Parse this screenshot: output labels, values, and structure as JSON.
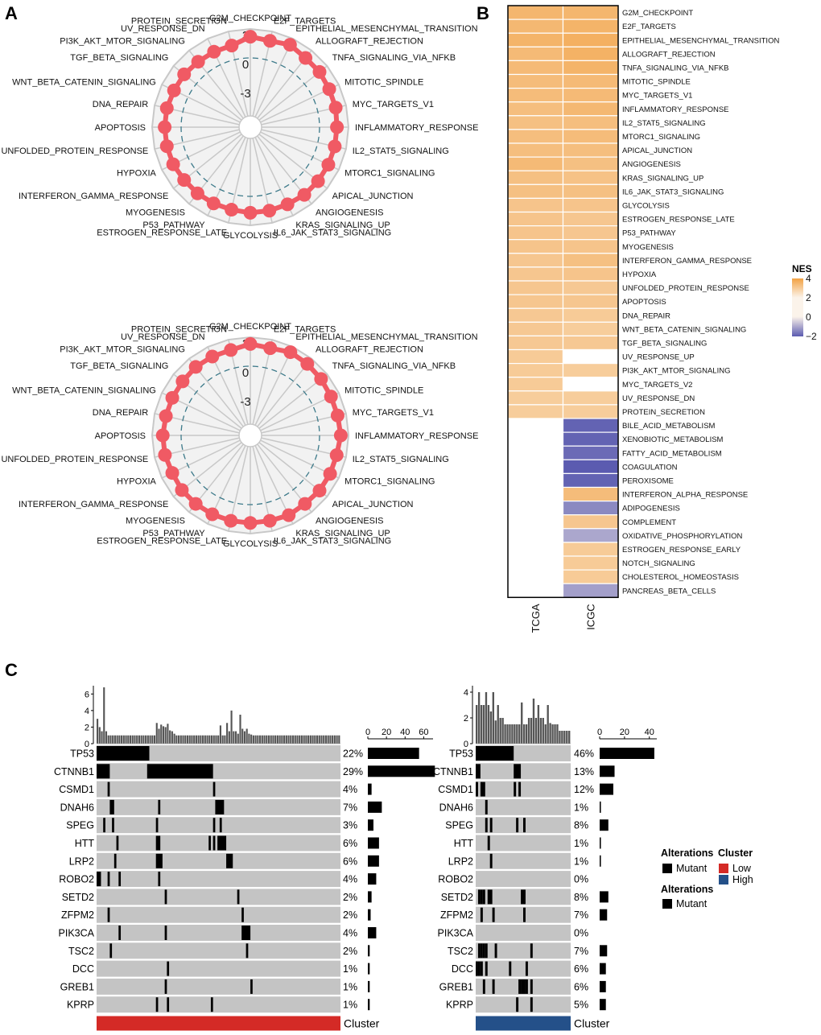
{
  "panel_labels": {
    "a": "A",
    "b": "B",
    "c": "C"
  },
  "colors": {
    "radar_point": "#f05a64",
    "radar_bg": "#f2f2f2",
    "radar_grid": "#c8c8c8",
    "zero_ring": "#3d7a8a",
    "nes_high": "#f2a244",
    "nes_mid": "#fbf3ea",
    "nes_low": "#5b5bb0",
    "cell_bg": "#c4c4c4",
    "mutant": "#000000",
    "cluster_low": "#d42a26",
    "cluster_high": "#245089"
  },
  "chart_data": [
    {
      "type": "radar",
      "panel": "A-top",
      "axes": [
        "G2M_CHECKPOINT",
        "E2F_TARGETS",
        "EPITHELIAL_MESENCHYMAL_TRANSITION",
        "ALLOGRAFT_REJECTION",
        "TNFA_SIGNALING_VIA_NFKB",
        "MITOTIC_SPINDLE",
        "MYC_TARGETS_V1",
        "INFLAMMATORY_RESPONSE",
        "IL2_STAT5_SIGNALING",
        "MTORC1_SIGNALING",
        "APICAL_JUNCTION",
        "ANGIOGENESIS",
        "KRAS_SIGNALING_UP",
        "IL6_JAK_STAT3_SIGNALING",
        "GLYCOLYSIS",
        "ESTROGEN_RESPONSE_LATE",
        "P53_PATHWAY",
        "MYOGENESIS",
        "INTERFERON_GAMMA_RESPONSE",
        "HYPOXIA",
        "UNFOLDED_PROTEIN_RESPONSE",
        "APOPTOSIS",
        "DNA_REPAIR",
        "WNT_BETA_CATENIN_SIGNALING",
        "TGF_BETA_SIGNALING",
        "PI3K_AKT_MTOR_SIGNALING",
        "UV_RESPONSE_DN",
        "PROTEIN_SECRETION"
      ],
      "values": [
        2.2,
        2.0,
        2.3,
        2.0,
        2.0,
        1.9,
        1.9,
        1.8,
        1.8,
        1.8,
        1.8,
        1.8,
        1.7,
        1.7,
        1.7,
        1.6,
        1.6,
        1.6,
        1.6,
        1.7,
        1.7,
        1.7,
        1.7,
        1.6,
        1.6,
        1.5,
        1.5,
        1.5
      ],
      "ticks": [
        "3",
        "0",
        "-3"
      ],
      "range": [
        -6,
        3
      ]
    },
    {
      "type": "radar",
      "panel": "A-bottom",
      "axes": [
        "G2M_CHECKPOINT",
        "E2F_TARGETS",
        "EPITHELIAL_MESENCHYMAL_TRANSITION",
        "ALLOGRAFT_REJECTION",
        "TNFA_SIGNALING_VIA_NFKB",
        "MITOTIC_SPINDLE",
        "MYC_TARGETS_V1",
        "INFLAMMATORY_RESPONSE",
        "IL2_STAT5_SIGNALING",
        "MTORC1_SIGNALING",
        "APICAL_JUNCTION",
        "ANGIOGENESIS",
        "KRAS_SIGNALING_UP",
        "IL6_JAK_STAT3_SIGNALING",
        "GLYCOLYSIS",
        "ESTROGEN_RESPONSE_LATE",
        "P53_PATHWAY",
        "MYOGENESIS",
        "INTERFERON_GAMMA_RESPONSE",
        "HYPOXIA",
        "UNFOLDED_PROTEIN_RESPONSE",
        "APOPTOSIS",
        "DNA_REPAIR",
        "WNT_BETA_CATENIN_SIGNALING",
        "TGF_BETA_SIGNALING",
        "PI3K_AKT_MTOR_SIGNALING",
        "UV_RESPONSE_DN",
        "PROTEIN_SECRETION"
      ],
      "values": [
        2.3,
        2.1,
        2.4,
        2.3,
        2.2,
        2.1,
        2.1,
        2.2,
        2.0,
        2.0,
        2.0,
        1.9,
        2.0,
        1.9,
        1.9,
        1.9,
        1.9,
        1.9,
        1.9,
        1.8,
        1.9,
        1.9,
        1.8,
        1.8,
        1.8,
        1.9,
        1.9,
        1.9
      ],
      "ticks": [
        "3",
        "0",
        "-3"
      ],
      "range": [
        -6,
        3
      ]
    },
    {
      "type": "heatmap",
      "panel": "B",
      "columns": [
        "TCGA",
        "ICGC"
      ],
      "rows": [
        "G2M_CHECKPOINT",
        "E2F_TARGETS",
        "EPITHELIAL_MESENCHYMAL_TRANSITION",
        "ALLOGRAFT_REJECTION",
        "TNFA_SIGNALING_VIA_NFKB",
        "MITOTIC_SPINDLE",
        "MYC_TARGETS_V1",
        "INFLAMMATORY_RESPONSE",
        "IL2_STAT5_SIGNALING",
        "MTORC1_SIGNALING",
        "APICAL_JUNCTION",
        "ANGIOGENESIS",
        "KRAS_SIGNALING_UP",
        "IL6_JAK_STAT3_SIGNALING",
        "GLYCOLYSIS",
        "ESTROGEN_RESPONSE_LATE",
        "P53_PATHWAY",
        "MYOGENESIS",
        "INTERFERON_GAMMA_RESPONSE",
        "HYPOXIA",
        "UNFOLDED_PROTEIN_RESPONSE",
        "APOPTOSIS",
        "DNA_REPAIR",
        "WNT_BETA_CATENIN_SIGNALING",
        "TGF_BETA_SIGNALING",
        "UV_RESPONSE_UP",
        "PI3K_AKT_MTOR_SIGNALING",
        "MYC_TARGETS_V2",
        "UV_RESPONSE_DN",
        "PROTEIN_SECRETION",
        "BILE_ACID_METABOLISM",
        "XENOBIOTIC_METABOLISM",
        "FATTY_ACID_METABOLISM",
        "COAGULATION",
        "PEROXISOME",
        "INTERFERON_ALPHA_RESPONSE",
        "ADIPOGENESIS",
        "COMPLEMENT",
        "OXIDATIVE_PHOSPHORYLATION",
        "ESTROGEN_RESPONSE_EARLY",
        "NOTCH_SIGNALING",
        "CHOLESTEROL_HOMEOSTASIS",
        "PANCREAS_BETA_CELLS"
      ],
      "values": [
        [
          3.0,
          3.0
        ],
        [
          2.9,
          3.1
        ],
        [
          3.1,
          3.3
        ],
        [
          2.8,
          3.2
        ],
        [
          2.8,
          3.1
        ],
        [
          2.7,
          2.8
        ],
        [
          2.7,
          2.8
        ],
        [
          2.6,
          2.9
        ],
        [
          2.5,
          2.6
        ],
        [
          2.6,
          2.7
        ],
        [
          2.6,
          2.6
        ],
        [
          2.8,
          2.5
        ],
        [
          2.5,
          2.4
        ],
        [
          2.5,
          2.5
        ],
        [
          2.3,
          2.3
        ],
        [
          2.3,
          2.2
        ],
        [
          2.3,
          2.2
        ],
        [
          2.3,
          2.3
        ],
        [
          2.2,
          2.5
        ],
        [
          2.2,
          2.3
        ],
        [
          2.2,
          2.1
        ],
        [
          2.2,
          2.2
        ],
        [
          2.1,
          2.0
        ],
        [
          2.1,
          1.9
        ],
        [
          2.1,
          2.1
        ],
        [
          2.0,
          null
        ],
        [
          2.0,
          1.9
        ],
        [
          2.0,
          null
        ],
        [
          1.9,
          1.9
        ],
        [
          1.9,
          1.9
        ],
        [
          null,
          -1.9
        ],
        [
          null,
          -1.9
        ],
        [
          null,
          -1.8
        ],
        [
          null,
          -2.0
        ],
        [
          null,
          -1.9
        ],
        [
          null,
          2.7
        ],
        [
          null,
          -1.4
        ],
        [
          null,
          2.2
        ],
        [
          null,
          -1.0
        ],
        [
          null,
          2.0
        ],
        [
          null,
          2.0
        ],
        [
          null,
          2.0
        ],
        [
          null,
          -1.1
        ]
      ],
      "legend": {
        "title": "NES",
        "ticks": [
          "4",
          "2",
          "0",
          "−2"
        ],
        "range": [
          -2,
          4
        ]
      }
    },
    {
      "type": "oncoprint",
      "panel": "C",
      "genes": [
        "TP53",
        "CTNNB1",
        "CSMD1",
        "DNAH6",
        "SPEG",
        "HTT",
        "LRP2",
        "ROBO2",
        "SETD2",
        "ZFPM2",
        "PIK3CA",
        "TSC2",
        "DCC",
        "GREB1",
        "KPRP"
      ],
      "cluster_label": "Cluster",
      "groups": [
        {
          "name": "Low",
          "samples": 111,
          "pct_labels": [
            "22%",
            "29%",
            "4%",
            "7%",
            "3%",
            "6%",
            "6%",
            "4%",
            "2%",
            "2%",
            "4%",
            "2%",
            "1%",
            "1%",
            "1%"
          ],
          "counts": [
            55,
            72,
            4,
            15,
            6,
            12,
            12,
            9,
            4,
            3,
            9,
            2,
            2,
            2,
            2
          ],
          "count_ticks": [
            "0",
            "20",
            "40",
            "60"
          ],
          "count_max": 70,
          "tmb_ticks": [
            "6",
            "4",
            "2",
            "0"
          ],
          "tmb_max": 7,
          "mut": [
            [
              [
                0,
                23
              ]
            ],
            [
              [
                0,
                5
              ],
              [
                23,
                52
              ]
            ],
            [
              [
                5
              ],
              [
                53
              ]
            ],
            [
              [
                6,
                7
              ],
              [
                28
              ],
              [
                54,
                57
              ]
            ],
            [
              [
                3
              ],
              [
                7
              ],
              [
                27
              ],
              [
                53
              ],
              [
                56
              ]
            ],
            [
              [
                9
              ],
              [
                27,
                28
              ],
              [
                51
              ],
              [
                53
              ],
              [
                55,
                58
              ]
            ],
            [
              [
                8
              ],
              [
                27,
                29
              ],
              [
                59,
                61
              ]
            ],
            [
              [
                0,
                1
              ],
              [
                5
              ],
              [
                10
              ],
              [
                28
              ]
            ],
            [
              [
                31
              ],
              [
                64
              ]
            ],
            [
              [
                5
              ],
              [
                66
              ]
            ],
            [
              [
                10
              ],
              [
                31
              ],
              [
                66,
                69
              ]
            ],
            [
              [
                6
              ],
              [
                68
              ]
            ],
            [
              [
                32
              ]
            ],
            [
              [
                31
              ],
              [
                70
              ]
            ],
            [
              [
                27
              ],
              [
                32
              ],
              [
                52
              ]
            ]
          ],
          "tmb": [
            3,
            2,
            1.5,
            6.8,
            1.5,
            1,
            1,
            1,
            1,
            1,
            1,
            1,
            1,
            1,
            1,
            1,
            1,
            1,
            1,
            1,
            1,
            1,
            1,
            1,
            1,
            1,
            1,
            2.5,
            1.8,
            2.3,
            2.1,
            2,
            2.4,
            1.6,
            1.5,
            1.2,
            1,
            1,
            1,
            1,
            1,
            1,
            1,
            1,
            1,
            1,
            1,
            1,
            1,
            1,
            1,
            1,
            1,
            1,
            1,
            1,
            2.2,
            1,
            1,
            2.5,
            1.5,
            4,
            1.5,
            1.5,
            1.2,
            3.5,
            1.8,
            1.5,
            1.8,
            1.2,
            1.1,
            1,
            1,
            1,
            1,
            1,
            1,
            1,
            1,
            1,
            1,
            1,
            1,
            1,
            1,
            1,
            1,
            1,
            1,
            1,
            1,
            1,
            1,
            1,
            1,
            1,
            1,
            1,
            1,
            1,
            1,
            1,
            1,
            1,
            1,
            1,
            1,
            1,
            1,
            1,
            1
          ]
        },
        {
          "name": "High",
          "samples": 40,
          "pct_labels": [
            "46%",
            "13%",
            "12%",
            "1%",
            "8%",
            "1%",
            "1%",
            "0%",
            "8%",
            "7%",
            "0%",
            "7%",
            "6%",
            "6%",
            "5%"
          ],
          "counts": [
            44,
            12,
            11,
            1,
            7,
            1,
            1,
            0,
            7,
            6,
            0,
            6,
            5,
            5,
            5
          ],
          "count_ticks": [
            "0",
            "20",
            "40"
          ],
          "count_max": 46,
          "tmb_ticks": [
            "4",
            "2",
            "0"
          ],
          "tmb_max": 4.5,
          "mut": [
            [
              [
                0,
                15
              ]
            ],
            [
              [
                0,
                1
              ],
              [
                16,
                18
              ]
            ],
            [
              [
                0
              ],
              [
                2,
                3
              ],
              [
                16
              ],
              [
                18
              ]
            ],
            [
              [
                4
              ]
            ],
            [
              [
                4
              ],
              [
                6
              ],
              [
                17
              ],
              [
                20
              ]
            ],
            [
              [
                5
              ]
            ],
            [
              [
                6
              ]
            ],
            [],
            [
              [
                1
              ],
              [
                2
              ],
              [
                3
              ],
              [
                5,
                6
              ],
              [
                19
              ],
              [
                20
              ]
            ],
            [
              [
                2
              ],
              [
                7
              ],
              [
                20
              ]
            ],
            [],
            [
              [
                1
              ],
              [
                2
              ],
              [
                3
              ],
              [
                4
              ],
              [
                8
              ],
              [
                23
              ]
            ],
            [
              [
                0
              ],
              [
                1
              ],
              [
                2
              ],
              [
                4
              ],
              [
                14
              ],
              [
                21
              ]
            ],
            [
              [
                3
              ],
              [
                7
              ],
              [
                18
              ],
              [
                19
              ],
              [
                20
              ],
              [
                21
              ],
              [
                23
              ]
            ],
            [
              [
                17
              ],
              [
                23
              ]
            ]
          ],
          "tmb": [
            3,
            4,
            3,
            3,
            4,
            3,
            2.5,
            4,
            1.8,
            3,
            2,
            2,
            1.5,
            1.5,
            1.5,
            1.5,
            1.5,
            1.5,
            1.5,
            3.2,
            1.5,
            1.5,
            2,
            2,
            3.5,
            2,
            3,
            2,
            2,
            1.5,
            3,
            1.6,
            1.5,
            1.5,
            1.5,
            1,
            1,
            1,
            1,
            1
          ]
        }
      ],
      "legend": {
        "alterations_title": "Alterations",
        "cluster_title": "Cluster",
        "mutant_label": "Mutant",
        "low_label": "Low",
        "high_label": "High"
      }
    }
  ]
}
